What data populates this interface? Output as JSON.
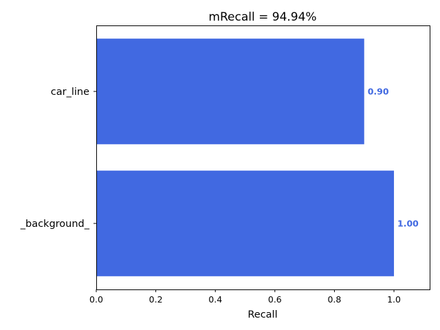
{
  "chart_data": {
    "type": "bar",
    "orientation": "horizontal",
    "title": "mRecall = 94.94%",
    "xlabel": "Recall",
    "ylabel": "",
    "categories": [
      "car_line",
      "_background_"
    ],
    "values": [
      0.9,
      1.0
    ],
    "value_labels": [
      "0.90",
      "1.00"
    ],
    "xlim": [
      0,
      1.12
    ],
    "xticks": [
      0.0,
      0.2,
      0.4,
      0.6,
      0.8,
      1.0
    ],
    "xtick_labels": [
      "0.0",
      "0.2",
      "0.4",
      "0.6",
      "0.8",
      "1.0"
    ],
    "grid": false,
    "legend": "none",
    "bar_color": "#4169E1",
    "label_color": "#4169E1"
  }
}
